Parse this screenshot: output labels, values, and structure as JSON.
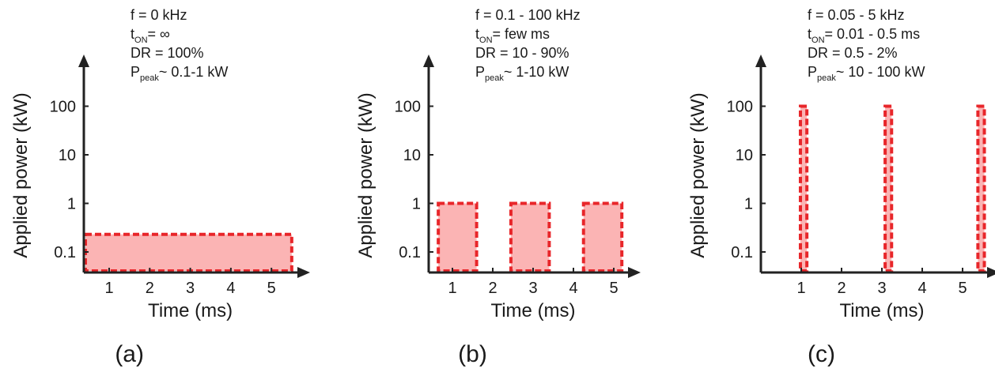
{
  "chart_data": [
    {
      "type": "area",
      "caption": "(a)",
      "annotations": {
        "f": "f = 0 kHz",
        "t_on_prefix": "t",
        "t_on_sub": "ON",
        "t_on_value": "= ∞",
        "dr": "DR = 100%",
        "p_prefix": "P",
        "p_sub": "peak",
        "p_value": "~ 0.1-1 kW"
      },
      "xlabel": "Time (ms)",
      "ylabel": "Applied power (kW)",
      "x_ticks": [
        "1",
        "2",
        "3",
        "4",
        "5"
      ],
      "y_ticks": [
        "0.1",
        "1",
        "10",
        "100"
      ],
      "y_scale": "log",
      "xlim": [
        0.4,
        5.6
      ],
      "ylim_log": [
        -1.35,
        1.85
      ],
      "pulses": [
        {
          "start": 0.4,
          "end": 5.5,
          "power": 0.23
        }
      ]
    },
    {
      "type": "area",
      "caption": "(b)",
      "annotations": {
        "f": "f = 0.1 - 100 kHz",
        "t_on_prefix": "t",
        "t_on_sub": "ON",
        "t_on_value": "= few ms",
        "dr": "DR = 10 - 90%",
        "p_prefix": "P",
        "p_sub": "peak",
        "p_value": "~ 1-10 kW"
      },
      "xlabel": "Time (ms)",
      "ylabel": "Applied power (kW)",
      "x_ticks": [
        "1",
        "2",
        "3",
        "4",
        "5"
      ],
      "y_ticks": [
        "0.1",
        "1",
        "10",
        "100"
      ],
      "y_scale": "log",
      "xlim": [
        0.4,
        5.6
      ],
      "ylim_log": [
        -1.35,
        1.85
      ],
      "pulses": [
        {
          "start": 0.65,
          "end": 1.6,
          "power": 1
        },
        {
          "start": 2.45,
          "end": 3.4,
          "power": 1
        },
        {
          "start": 4.25,
          "end": 5.2,
          "power": 1
        }
      ]
    },
    {
      "type": "area",
      "caption": "(c)",
      "annotations": {
        "f": "f = 0.05 - 5 kHz",
        "t_on_prefix": "t",
        "t_on_sub": "ON",
        "t_on_value": "= 0.01 - 0.5 ms",
        "dr": "DR = 0.5 - 2%",
        "p_prefix": "P",
        "p_sub": "peak",
        "p_value": "~ 10 - 100 kW"
      },
      "xlabel": "Time (ms)",
      "ylabel": "Applied power (kW)",
      "x_ticks": [
        "1",
        "2",
        "3",
        "4",
        "5"
      ],
      "y_ticks": [
        "0.1",
        "1",
        "10",
        "100"
      ],
      "y_scale": "log",
      "xlim": [
        0.4,
        5.6
      ],
      "ylim_log": [
        -1.35,
        1.85
      ],
      "pulses": [
        {
          "start": 0.98,
          "end": 1.14,
          "power": 100
        },
        {
          "start": 3.08,
          "end": 3.24,
          "power": 100
        },
        {
          "start": 5.38,
          "end": 5.54,
          "power": 100
        }
      ]
    }
  ]
}
